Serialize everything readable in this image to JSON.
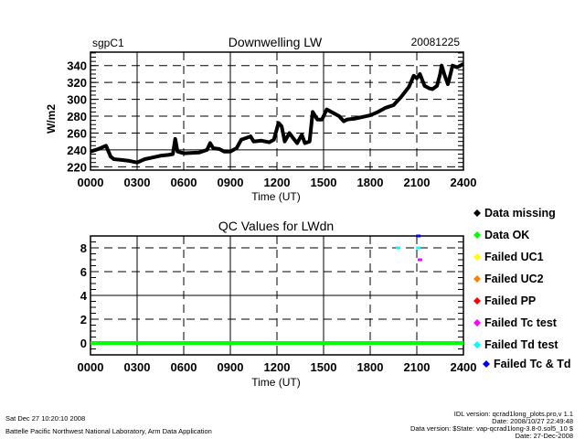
{
  "chart_data": [
    {
      "type": "line",
      "site": "sgpC1",
      "title": "Downwelling LW",
      "date": "20081225",
      "xlabel": "Time (UT)",
      "ylabel": "W/m2",
      "xlim": [
        0,
        24
      ],
      "ylim": [
        216,
        356
      ],
      "xticks": [
        0,
        3,
        6,
        9,
        12,
        15,
        18,
        21,
        24
      ],
      "xtick_labels": [
        "0000",
        "0300",
        "0600",
        "0900",
        "1200",
        "1500",
        "1800",
        "2100",
        "2400"
      ],
      "yticks": [
        220,
        240,
        260,
        280,
        300,
        320,
        340
      ],
      "ytick_labels": [
        "220",
        "240",
        "260",
        "280",
        "300",
        "320",
        "340"
      ],
      "grid": true,
      "series": [
        {
          "name": "LWdn",
          "color": "#000000",
          "x": [
            0,
            0.5,
            1.0,
            1.3,
            1.5,
            2,
            2.5,
            3,
            3.5,
            4,
            4.5,
            5,
            5.3,
            5.45,
            5.6,
            6,
            7,
            7.5,
            7.7,
            7.9,
            8.3,
            8.6,
            9,
            9.4,
            9.7,
            10,
            10.3,
            10.5,
            11,
            11.5,
            11.8,
            12.1,
            12.3,
            12.5,
            12.8,
            13,
            13.3,
            13.6,
            13.8,
            14.1,
            14.3,
            14.6,
            14.9,
            15.2,
            15.6,
            16,
            16.3,
            16.5,
            17,
            17.5,
            18,
            18.5,
            19,
            19.5,
            20,
            20.5,
            20.8,
            21,
            21.2,
            21.5,
            21.8,
            22,
            22.3,
            22.5,
            22.6,
            22.8,
            23,
            23.1,
            23.3,
            23.6,
            24
          ],
          "y": [
            238,
            241,
            245,
            232,
            229,
            228,
            227,
            225,
            229,
            231,
            233,
            234,
            235,
            253,
            238,
            236,
            237,
            240,
            248,
            242,
            241,
            238,
            238,
            242,
            252,
            254,
            256,
            250,
            251,
            249,
            252,
            272,
            268,
            250,
            260,
            255,
            248,
            258,
            248,
            250,
            285,
            276,
            276,
            288,
            284,
            280,
            274,
            276,
            277,
            279,
            281,
            285,
            290,
            293,
            303,
            315,
            328,
            325,
            330,
            316,
            313,
            312,
            316,
            330,
            340,
            328,
            318,
            325,
            340,
            338,
            342
          ]
        }
      ]
    },
    {
      "type": "scatter",
      "title": "QC Values for LWdn",
      "xlabel": "Time (UT)",
      "xlim": [
        0,
        24
      ],
      "ylim": [
        -1,
        9
      ],
      "xticks": [
        0,
        3,
        6,
        9,
        12,
        15,
        18,
        21,
        24
      ],
      "xtick_labels": [
        "0000",
        "0300",
        "0600",
        "0900",
        "1200",
        "1500",
        "1800",
        "2100",
        "2400"
      ],
      "yticks": [
        0,
        2,
        4,
        6,
        8
      ],
      "ytick_labels": [
        "0",
        "2",
        "4",
        "6",
        "8"
      ],
      "grid": true,
      "ok_line": {
        "value": 0,
        "color": "#00ff00"
      },
      "points": [
        {
          "x": 19.8,
          "y": 8,
          "color": "#00ffff"
        },
        {
          "x": 21.1,
          "y": 8,
          "color": "#00ffff"
        },
        {
          "x": 21.2,
          "y": 7,
          "color": "#ff00ff"
        },
        {
          "x": 21.1,
          "y": 9,
          "color": "#0000ff"
        }
      ],
      "legend_position": "right",
      "legend": [
        {
          "label": "Data missing",
          "color": "#000000"
        },
        {
          "label": "Data OK",
          "color": "#00ff00"
        },
        {
          "label": "Failed UC1",
          "color": "#ffff00"
        },
        {
          "label": "Failed UC2",
          "color": "#ff8000"
        },
        {
          "label": "Failed PP",
          "color": "#ff0000"
        },
        {
          "label": "Failed Tc test",
          "color": "#ff00ff"
        },
        {
          "label": "Failed Td test",
          "color": "#00ffff"
        },
        {
          "label": "Failed Tc & Td",
          "color": "#0000ff"
        }
      ]
    }
  ],
  "footer": {
    "timestamp": "Sat Dec 27 10:20:10 2008",
    "org": "Battelle Pacific Northwest National Laboratory, Arm Data Application",
    "idl_version": "IDL version: qcrad1long_plots.pro,v 1.1",
    "idl_date": "Date: 2008/10/27 22:49:48",
    "data_version": "Data version: $State: vap-qcrad1long-3.8-0.sol5_10 $",
    "data_date": "Date: 27-Dec-2008"
  }
}
